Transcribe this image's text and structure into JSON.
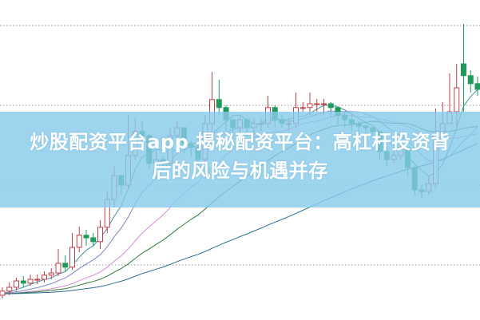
{
  "title": {
    "line1": "炒股配资平台app 揭秘配资平台：高杠杆投资背",
    "line2": "后的风险与机遇并存"
  },
  "colors": {
    "up": "#c0404a",
    "down": "#1f9a5a",
    "banner": "#87cbea",
    "grid": "#9a9a9a",
    "ma": [
      "#3a8fa0",
      "#7f86c8",
      "#d88ad8",
      "#2f7a3a",
      "#2a6f90"
    ]
  },
  "chart_data": {
    "type": "candlestick",
    "title": "",
    "xlabel": "",
    "ylabel": "",
    "ylim": [
      0,
      100
    ],
    "grid": true,
    "candles_ochl": [
      [
        7.5,
        8.8,
        10,
        6.5
      ],
      [
        8.8,
        10,
        11.5,
        7.5
      ],
      [
        10,
        12,
        13,
        9
      ],
      [
        12,
        11.3,
        13.5,
        10
      ],
      [
        11.3,
        12.5,
        14,
        10.5
      ],
      [
        12.5,
        12.5,
        14,
        11
      ],
      [
        12.5,
        13.8,
        15,
        11.5
      ],
      [
        13.8,
        14.5,
        16,
        12.5
      ],
      [
        14.5,
        17.5,
        22,
        13.5
      ],
      [
        17.5,
        16.3,
        20,
        15
      ],
      [
        16.3,
        22.5,
        27,
        15.5
      ],
      [
        22.5,
        26.3,
        29,
        21
      ],
      [
        26.3,
        25.5,
        28,
        23
      ],
      [
        25.5,
        24.3,
        27,
        23
      ],
      [
        24.3,
        28.8,
        31,
        22
      ],
      [
        28.8,
        37.5,
        40,
        27
      ],
      [
        37.5,
        45,
        48,
        35
      ],
      [
        45,
        42,
        44,
        39
      ],
      [
        42,
        51.3,
        64,
        41
      ],
      [
        51.3,
        58.8,
        63,
        50
      ],
      [
        58.8,
        57.5,
        62,
        53
      ],
      [
        57.5,
        48.8,
        58,
        47
      ],
      [
        48.8,
        50,
        53,
        46
      ],
      [
        50,
        48.8,
        51,
        46
      ],
      [
        48.8,
        57.5,
        60,
        47
      ],
      [
        57.5,
        60,
        62,
        56
      ],
      [
        60,
        55,
        59,
        52
      ],
      [
        55,
        53.8,
        56,
        51
      ],
      [
        53.8,
        50,
        55,
        48
      ],
      [
        50,
        61.3,
        64,
        49
      ],
      [
        61.3,
        68.8,
        77.5,
        55
      ],
      [
        68.8,
        66.3,
        75,
        64
      ],
      [
        66.3,
        62.5,
        67,
        58
      ],
      [
        62.5,
        60,
        62,
        57
      ],
      [
        60,
        62.5,
        64,
        58
      ],
      [
        62.5,
        60,
        63,
        57
      ],
      [
        60,
        61.3,
        63,
        58
      ],
      [
        61.3,
        61.3,
        63,
        59
      ],
      [
        61.3,
        66.3,
        70,
        60
      ],
      [
        66.3,
        62.5,
        67,
        60
      ],
      [
        62.5,
        61.3,
        64,
        60
      ],
      [
        61.3,
        61.3,
        63,
        59
      ],
      [
        61.3,
        66.3,
        71,
        60
      ],
      [
        66.3,
        66.3,
        68,
        65
      ],
      [
        66.3,
        67.5,
        71,
        64
      ],
      [
        67.5,
        67.5,
        69,
        65
      ],
      [
        67.5,
        67.5,
        69,
        64
      ],
      [
        67.5,
        66.3,
        68,
        63
      ],
      [
        66.3,
        63.8,
        66,
        61
      ],
      [
        63.8,
        62.5,
        65,
        60
      ],
      [
        62.5,
        61.3,
        64,
        59
      ],
      [
        61.3,
        60.5,
        62,
        58
      ],
      [
        60.5,
        60,
        61,
        58
      ],
      [
        60,
        58.8,
        60,
        57
      ],
      [
        58.8,
        52.5,
        59,
        50
      ],
      [
        52.5,
        50,
        54,
        48
      ],
      [
        50,
        51.3,
        54,
        49
      ],
      [
        51.3,
        53.8,
        56,
        50
      ],
      [
        53.8,
        47.5,
        54,
        45
      ],
      [
        47.5,
        40.5,
        48,
        39
      ],
      [
        40.5,
        40,
        42,
        38
      ],
      [
        40,
        42.5,
        45,
        39
      ],
      [
        42.5,
        58.8,
        66,
        41
      ],
      [
        58.8,
        61.3,
        68,
        57
      ],
      [
        61.3,
        65,
        77,
        62
      ],
      [
        65,
        72.5,
        80,
        60
      ],
      [
        80,
        76.3,
        92.5,
        65
      ],
      [
        76.3,
        73.8,
        78,
        71
      ],
      [
        73.8,
        72,
        76,
        70
      ]
    ],
    "moving_average_periods": [
      5,
      10,
      20,
      30,
      60
    ],
    "gridlines": [
      17,
      42,
      67,
      92
    ]
  }
}
